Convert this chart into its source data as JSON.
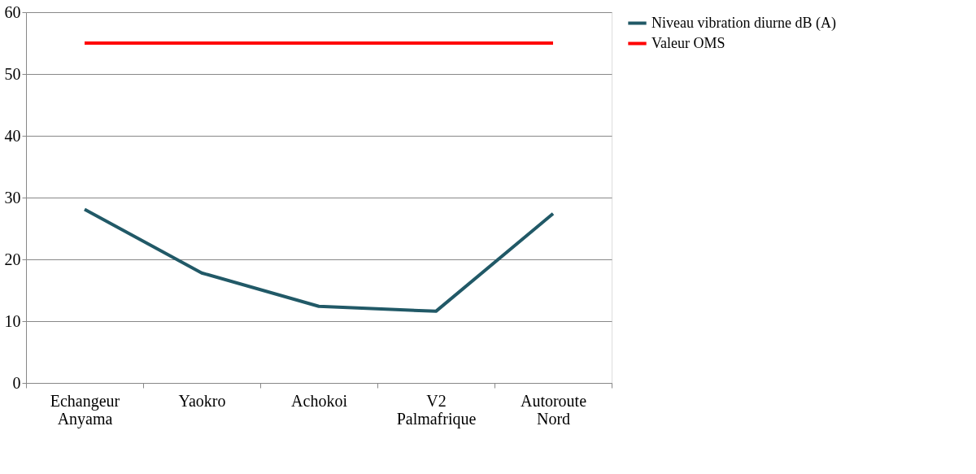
{
  "chart_data": {
    "type": "line",
    "categories": [
      "Echangeur Anyama",
      "Yaokro",
      "Achokoi",
      "V2 Palmafrique",
      "Autoroute Nord"
    ],
    "series": [
      {
        "name": "Niveau vibration diurne dB (A)",
        "color": "#215967",
        "values": [
          28.1,
          17.8,
          12.4,
          11.6,
          27.4
        ]
      },
      {
        "name": "Valeur OMS",
        "color": "#ff0000",
        "values": [
          55,
          55,
          55,
          55,
          55
        ]
      }
    ],
    "ylim": [
      0,
      60
    ],
    "yticks": [
      0,
      10,
      20,
      30,
      40,
      50,
      60
    ],
    "grid": "y",
    "legend": "right",
    "marker": "none",
    "line_style": "solid"
  }
}
